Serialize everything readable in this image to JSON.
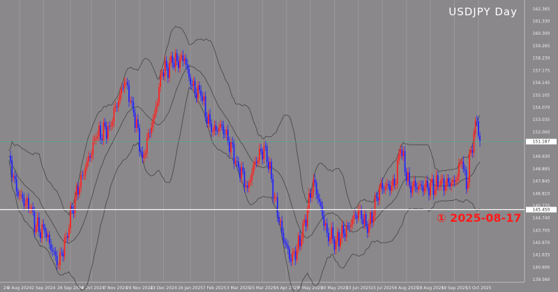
{
  "header": {
    "title": "USDJPY  Day"
  },
  "annotation": {
    "text": "① 2025-08-17",
    "color": "#ff1a1a"
  },
  "colors": {
    "background": "#8a888a",
    "bull_candle": "#ff2020",
    "bear_candle": "#2222ff",
    "bands": "#4a4a4a",
    "current_price_line": "#3fb38a",
    "level_line": "#ffffff"
  },
  "chart_data": {
    "type": "candlestick",
    "symbol": "USDJPY",
    "timeframe": "Day",
    "indicator": "Bollinger Bands",
    "ylim": [
      139.56,
      162.365
    ],
    "y_ticks": [
      "162.365",
      "161.330",
      "160.300",
      "159.265",
      "158.230",
      "157.175",
      "156.145",
      "155.105",
      "154.070",
      "153.035",
      "152.000",
      "149.930",
      "148.895",
      "147.845",
      "146.810",
      "145.775",
      "144.740",
      "143.705",
      "142.670",
      "141.635",
      "140.600",
      "139.560"
    ],
    "x_ticks": [
      {
        "label": "24",
        "date": "2024-07-29"
      },
      {
        "label": "9 Aug 2024",
        "date": "2024-08-09"
      },
      {
        "label": "2 Sep 2024",
        "date": "2024-09-02"
      },
      {
        "label": "26 Sep 2024",
        "date": "2024-09-26"
      },
      {
        "label": "16 Oct 2024",
        "date": "2024-10-16"
      },
      {
        "label": "7 Nov 2024",
        "date": "2024-11-07"
      },
      {
        "label": "29 Nov 2024",
        "date": "2024-11-29"
      },
      {
        "label": "23 Dec 2024",
        "date": "2024-12-23"
      },
      {
        "label": "16 Jan 2025",
        "date": "2025-01-16"
      },
      {
        "label": "7 Feb 2025",
        "date": "2025-02-07"
      },
      {
        "label": "3 Mar 2025",
        "date": "2025-03-03"
      },
      {
        "label": "25 Mar 2025",
        "date": "2025-03-25"
      },
      {
        "label": "16 Apr 2025",
        "date": "2025-04-16"
      },
      {
        "label": "8 May 2025",
        "date": "2025-05-08"
      },
      {
        "label": "30 May 2025",
        "date": "2025-05-30"
      },
      {
        "label": "23 Jun 2025",
        "date": "2025-06-23"
      },
      {
        "label": "15 Jul 2025",
        "date": "2025-07-15"
      },
      {
        "label": "6 Aug 2025",
        "date": "2025-08-06"
      },
      {
        "label": "28 Aug 2025",
        "date": "2025-08-28"
      },
      {
        "label": "19 Sep 2025",
        "date": "2025-09-19"
      },
      {
        "label": "13 Oct 2025",
        "date": "2025-10-13"
      }
    ],
    "current_price": "151.187",
    "level_line": "145.450",
    "closes": [
      [
        "2024-07-31",
        150.0
      ],
      [
        "2024-08-07",
        147.0
      ],
      [
        "2024-08-20",
        145.5
      ],
      [
        "2024-08-26",
        144.0
      ],
      [
        "2024-09-03",
        143.5
      ],
      [
        "2024-09-16",
        140.8
      ],
      [
        "2024-09-23",
        143.2
      ],
      [
        "2024-10-01",
        146.5
      ],
      [
        "2024-10-10",
        149.0
      ],
      [
        "2024-10-21",
        151.5
      ],
      [
        "2024-11-01",
        152.5
      ],
      [
        "2024-11-15",
        156.2
      ],
      [
        "2024-11-22",
        154.5
      ],
      [
        "2024-12-03",
        149.8
      ],
      [
        "2024-12-13",
        153.5
      ],
      [
        "2024-12-20",
        157.0
      ],
      [
        "2024-12-31",
        157.8
      ],
      [
        "2025-01-10",
        158.2
      ],
      [
        "2025-01-16",
        156.0
      ],
      [
        "2025-01-27",
        155.0
      ],
      [
        "2025-02-05",
        152.0
      ],
      [
        "2025-02-14",
        152.5
      ],
      [
        "2025-02-28",
        149.5
      ],
      [
        "2025-03-11",
        147.3
      ],
      [
        "2025-03-18",
        149.5
      ],
      [
        "2025-03-27",
        150.8
      ],
      [
        "2025-04-04",
        146.5
      ],
      [
        "2025-04-11",
        143.5
      ],
      [
        "2025-04-21",
        141.1
      ],
      [
        "2025-04-30",
        143.0
      ],
      [
        "2025-05-12",
        148.0
      ],
      [
        "2025-05-23",
        143.5
      ],
      [
        "2025-06-02",
        142.8
      ],
      [
        "2025-06-12",
        144.0
      ],
      [
        "2025-06-24",
        145.5
      ],
      [
        "2025-07-01",
        143.5
      ],
      [
        "2025-07-11",
        147.3
      ],
      [
        "2025-07-25",
        147.5
      ],
      [
        "2025-07-31",
        150.5
      ],
      [
        "2025-08-08",
        147.5
      ],
      [
        "2025-08-22",
        147.3
      ],
      [
        "2025-09-05",
        147.5
      ],
      [
        "2025-09-19",
        147.8
      ],
      [
        "2025-09-26",
        149.5
      ],
      [
        "2025-10-01",
        147.2
      ],
      [
        "2025-10-06",
        150.5
      ],
      [
        "2025-10-10",
        152.9
      ],
      [
        "2025-10-14",
        151.2
      ]
    ]
  }
}
